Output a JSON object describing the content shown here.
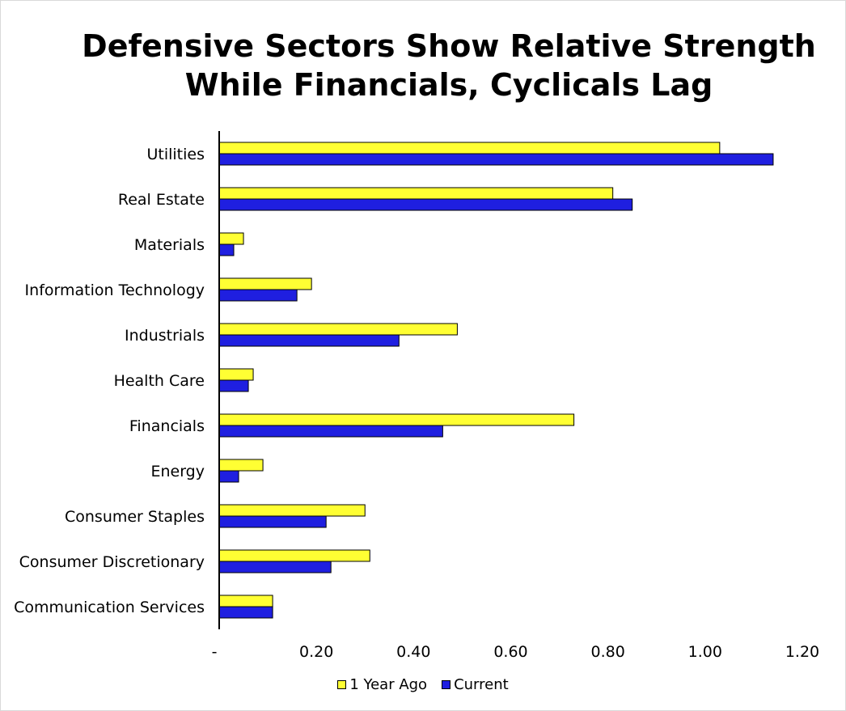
{
  "chart_data": {
    "type": "bar",
    "orientation": "horizontal",
    "title_lines": [
      "Defensive Sectors Show Relative Strength",
      "While Financials, Cyclicals Lag"
    ],
    "categories": [
      "Utilities",
      "Real Estate",
      "Materials",
      "Information Technology",
      "Industrials",
      "Health Care",
      "Financials",
      "Energy",
      "Consumer Staples",
      "Consumer Discretionary",
      "Communication Services"
    ],
    "series": [
      {
        "name": "1 Year Ago",
        "color": "#ffff33",
        "values": [
          1.03,
          0.81,
          0.05,
          0.19,
          0.49,
          0.07,
          0.73,
          0.09,
          0.3,
          0.31,
          0.11
        ]
      },
      {
        "name": "Current",
        "color": "#1f1fe0",
        "values": [
          1.14,
          0.85,
          0.03,
          0.16,
          0.37,
          0.06,
          0.46,
          0.04,
          0.22,
          0.23,
          0.11
        ]
      }
    ],
    "xlim": [
      0,
      1.2
    ],
    "x_ticks": [
      0,
      0.2,
      0.4,
      0.6,
      0.8,
      1.0,
      1.2
    ],
    "x_tick_labels": [
      "-",
      "0.20",
      "0.40",
      "0.60",
      "0.80",
      "1.00",
      "1.20"
    ],
    "grid": false,
    "legend_position": "bottom"
  }
}
